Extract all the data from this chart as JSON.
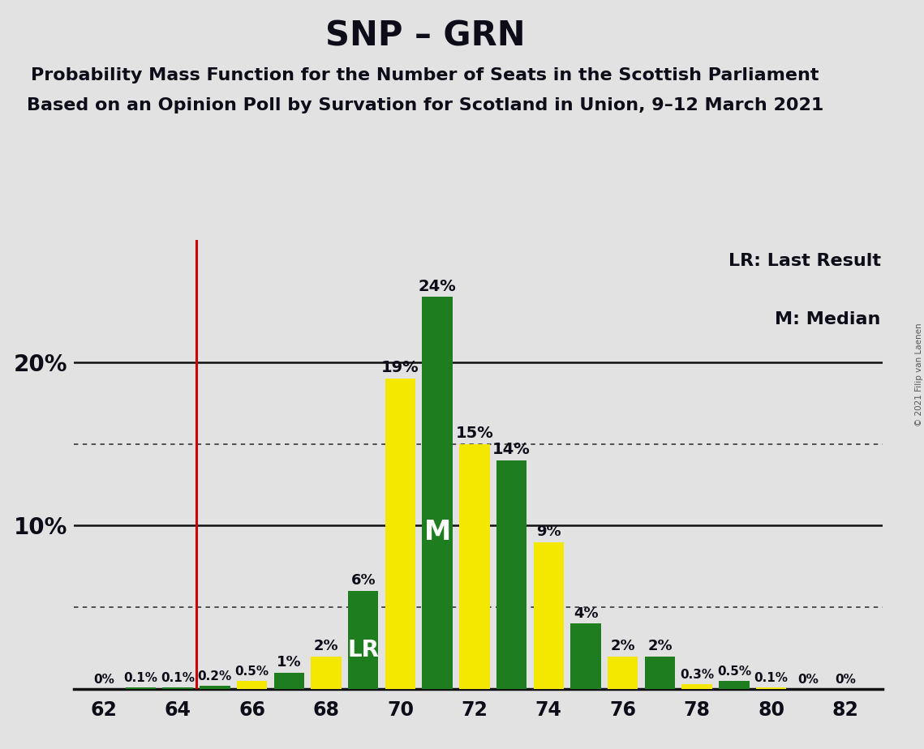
{
  "title": "SNP – GRN",
  "subtitle1": "Probability Mass Function for the Number of Seats in the Scottish Parliament",
  "subtitle2": "Based on an Opinion Poll by Survation for Scotland in Union, 9–12 March 2021",
  "copyright": "© 2021 Filip van Laenen",
  "legend1": "LR: Last Result",
  "legend2": "M: Median",
  "lr_line": 64.5,
  "median_seat": 71,
  "lr_label_seat": 69,
  "seats": [
    62,
    63,
    64,
    65,
    66,
    67,
    68,
    69,
    70,
    71,
    72,
    73,
    74,
    75,
    76,
    77,
    78,
    79,
    80,
    81,
    82
  ],
  "values": [
    0.0,
    0.1,
    0.1,
    0.2,
    0.5,
    1.0,
    2.0,
    6.0,
    19.0,
    24.0,
    15.0,
    14.0,
    9.0,
    4.0,
    2.0,
    2.0,
    0.3,
    0.5,
    0.1,
    0.0,
    0.0
  ],
  "colors": [
    "#1e7d1e",
    "#1e7d1e",
    "#1e7d1e",
    "#1e7d1e",
    "#f5e800",
    "#1e7d1e",
    "#f5e800",
    "#1e7d1e",
    "#f5e800",
    "#1e7d1e",
    "#f5e800",
    "#1e7d1e",
    "#f5e800",
    "#1e7d1e",
    "#f5e800",
    "#1e7d1e",
    "#f5e800",
    "#1e7d1e",
    "#f5e800",
    "#1e7d1e",
    "#1e7d1e"
  ],
  "bar_width": 0.82,
  "xlim": [
    61.2,
    83.0
  ],
  "ylim": [
    0,
    27.5
  ],
  "bg_color": "#E2E2E2",
  "title_fontsize": 30,
  "subtitle_fontsize": 16,
  "ytick_fontsize": 20,
  "xtick_fontsize": 17,
  "label_fontsize_large": 14,
  "label_fontsize_small": 11,
  "solid_lines": [
    10,
    20
  ],
  "dotted_lines": [
    5,
    15
  ]
}
